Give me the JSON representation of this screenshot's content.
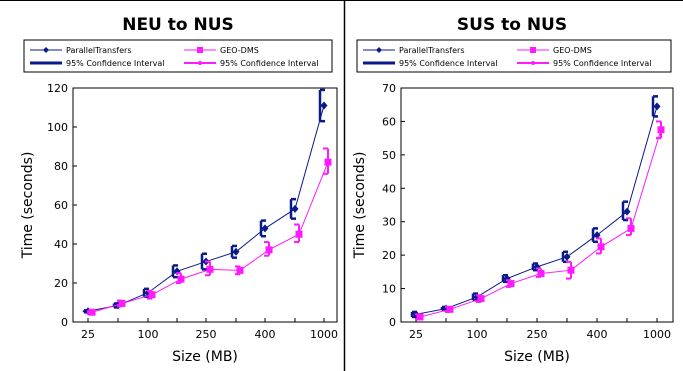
{
  "colors": {
    "parallel": "#0a1a8a",
    "geo": "#ff1aff",
    "frame": "#000000"
  },
  "chart_data": [
    {
      "type": "line",
      "title": "NEU to NUS",
      "xlabel": "Size (MB)",
      "ylabel": "Time (seconds)",
      "ylim": [
        0,
        120
      ],
      "yticks": [
        "0",
        "20",
        "40",
        "60",
        "80",
        "100",
        "120"
      ],
      "categories": [
        "25",
        "",
        "100",
        "",
        "250",
        "",
        "400",
        "",
        "1000"
      ],
      "legend": {
        "position": "top",
        "entries": [
          "ParallelTransfers",
          "95% Confidence Interval",
          "GEO-DMS",
          "95% Confidence Interval"
        ]
      },
      "series": [
        {
          "name": "ParallelTransfers",
          "color": "parallel",
          "values": [
            5.5,
            8.5,
            15,
            26,
            31,
            36,
            48,
            58,
            111
          ],
          "ci_low": [
            5,
            7.5,
            13,
            23,
            27,
            33,
            44,
            53,
            103
          ],
          "ci_high": [
            6,
            9.5,
            17,
            29,
            35,
            39,
            52,
            63,
            119
          ]
        },
        {
          "name": "GEO-DMS",
          "color": "geo",
          "values": [
            5,
            9.5,
            14,
            22,
            27,
            26.5,
            37,
            45,
            82
          ],
          "ci_low": [
            4.5,
            8,
            12,
            20,
            24,
            24.5,
            34,
            41,
            76
          ],
          "ci_high": [
            5.5,
            11,
            16,
            25,
            31,
            28.5,
            41,
            50,
            89
          ]
        }
      ]
    },
    {
      "type": "line",
      "title": "SUS to NUS",
      "xlabel": "Size (MB)",
      "ylabel": "Time (seconds)",
      "ylim": [
        0,
        70
      ],
      "yticks": [
        "0",
        "10",
        "20",
        "30",
        "40",
        "50",
        "60",
        "70"
      ],
      "categories": [
        "25",
        "",
        "100",
        "",
        "250",
        "",
        "400",
        "",
        "1000"
      ],
      "legend": {
        "position": "top",
        "entries": [
          "ParallelTransfers",
          "95% Confidence Interval",
          "GEO-DMS",
          "95% Confidence Interval"
        ]
      },
      "series": [
        {
          "name": "ParallelTransfers",
          "color": "parallel",
          "values": [
            2.3,
            4,
            7.5,
            13,
            16.5,
            19.5,
            26,
            33,
            64.5
          ],
          "ci_low": [
            1.5,
            3.5,
            6.5,
            12,
            15.5,
            18,
            24,
            30.5,
            61.5
          ],
          "ci_high": [
            3,
            4.5,
            8.5,
            14,
            17.5,
            21,
            28,
            36,
            67.5
          ]
        },
        {
          "name": "GEO-DMS",
          "color": "geo",
          "values": [
            1.5,
            3.8,
            7,
            11.5,
            14.5,
            15.5,
            22.5,
            28,
            57.5
          ],
          "ci_low": [
            0.8,
            3,
            6,
            10.5,
            13.5,
            13,
            20.5,
            26,
            55
          ],
          "ci_high": [
            2.3,
            4.5,
            8,
            12.5,
            16,
            18,
            25,
            31,
            60
          ]
        }
      ]
    }
  ]
}
